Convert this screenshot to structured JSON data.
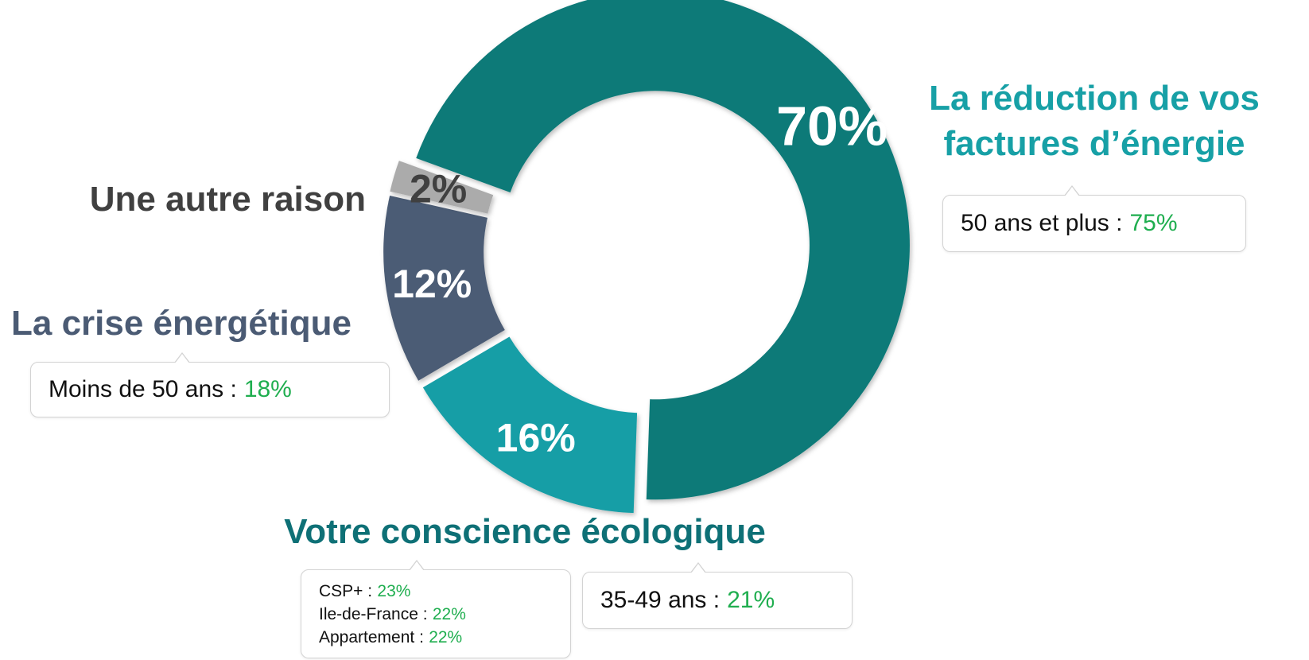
{
  "chart_data": {
    "type": "donut",
    "categories": [
      "La réduction de vos factures d’énergie",
      "Votre conscience écologique",
      "La crise énergétique",
      "Une autre raison"
    ],
    "values": [
      70,
      16,
      12,
      2
    ],
    "value_labels": [
      "70%",
      "16%",
      "12%",
      "2%"
    ],
    "colors": [
      "#0e7a78",
      "#179ea6",
      "#4b5b74",
      "#ababab"
    ],
    "value_label_colors": [
      "#ffffff",
      "#ffffff",
      "#ffffff",
      "#404040"
    ],
    "label_colors": [
      "#17a0a6",
      "#0e7076",
      "#4b5b74",
      "#404040"
    ],
    "notes": [
      [
        [
          {
            "text": "50 ans et plus :",
            "value": "75%"
          }
        ]
      ],
      [
        [
          {
            "text": "CSP+ :",
            "value": "23%"
          },
          {
            "text": "Ile-de-France :",
            "value": "22%"
          },
          {
            "text": "Appartement :",
            "value": "22%"
          }
        ],
        [
          {
            "text": "35-49 ans :",
            "value": "21%"
          }
        ]
      ],
      [
        [
          {
            "text": "Moins de 50 ans :",
            "value": "18%"
          }
        ]
      ],
      []
    ],
    "note_value_color": "#1fae4f"
  }
}
